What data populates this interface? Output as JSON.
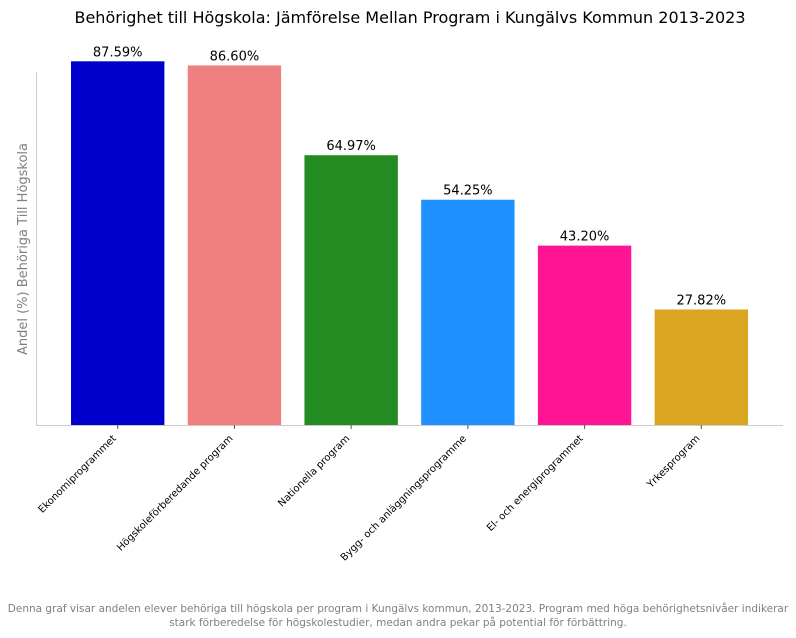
{
  "chart_data": {
    "type": "bar",
    "title": "Behörighet till Högskola: Jämförelse Mellan Program i Kungälvs Kommun 2013-2023",
    "xlabel": "",
    "ylabel": "Andel (%) Behöriga Till Högskola",
    "categories": [
      "Ekonomiprogrammet",
      "Högskoleförberedande program",
      "Nationella program",
      "Bygg- och anläggningsprogramme",
      "El- och energiprogrammet",
      "Yrkesprogram"
    ],
    "values": [
      87.59,
      86.6,
      64.97,
      54.25,
      43.2,
      27.82
    ],
    "value_labels": [
      "87.59%",
      "86.60%",
      "64.97%",
      "54.25%",
      "43.20%",
      "27.82%"
    ],
    "colors": [
      "#0000CD",
      "#F08080",
      "#228B22",
      "#1E90FF",
      "#FF1493",
      "#DAA520"
    ],
    "ylim": [
      0,
      92
    ],
    "grid": false,
    "y_ticks_visible": false
  },
  "caption": "Denna graf visar andelen elever behöriga till högskola per program i Kungälvs kommun, 2013-2023. Program med höga behörighetsnivåer indikerar stark förberedelse för högskolestudier, medan andra pekar på potential för förbättring."
}
